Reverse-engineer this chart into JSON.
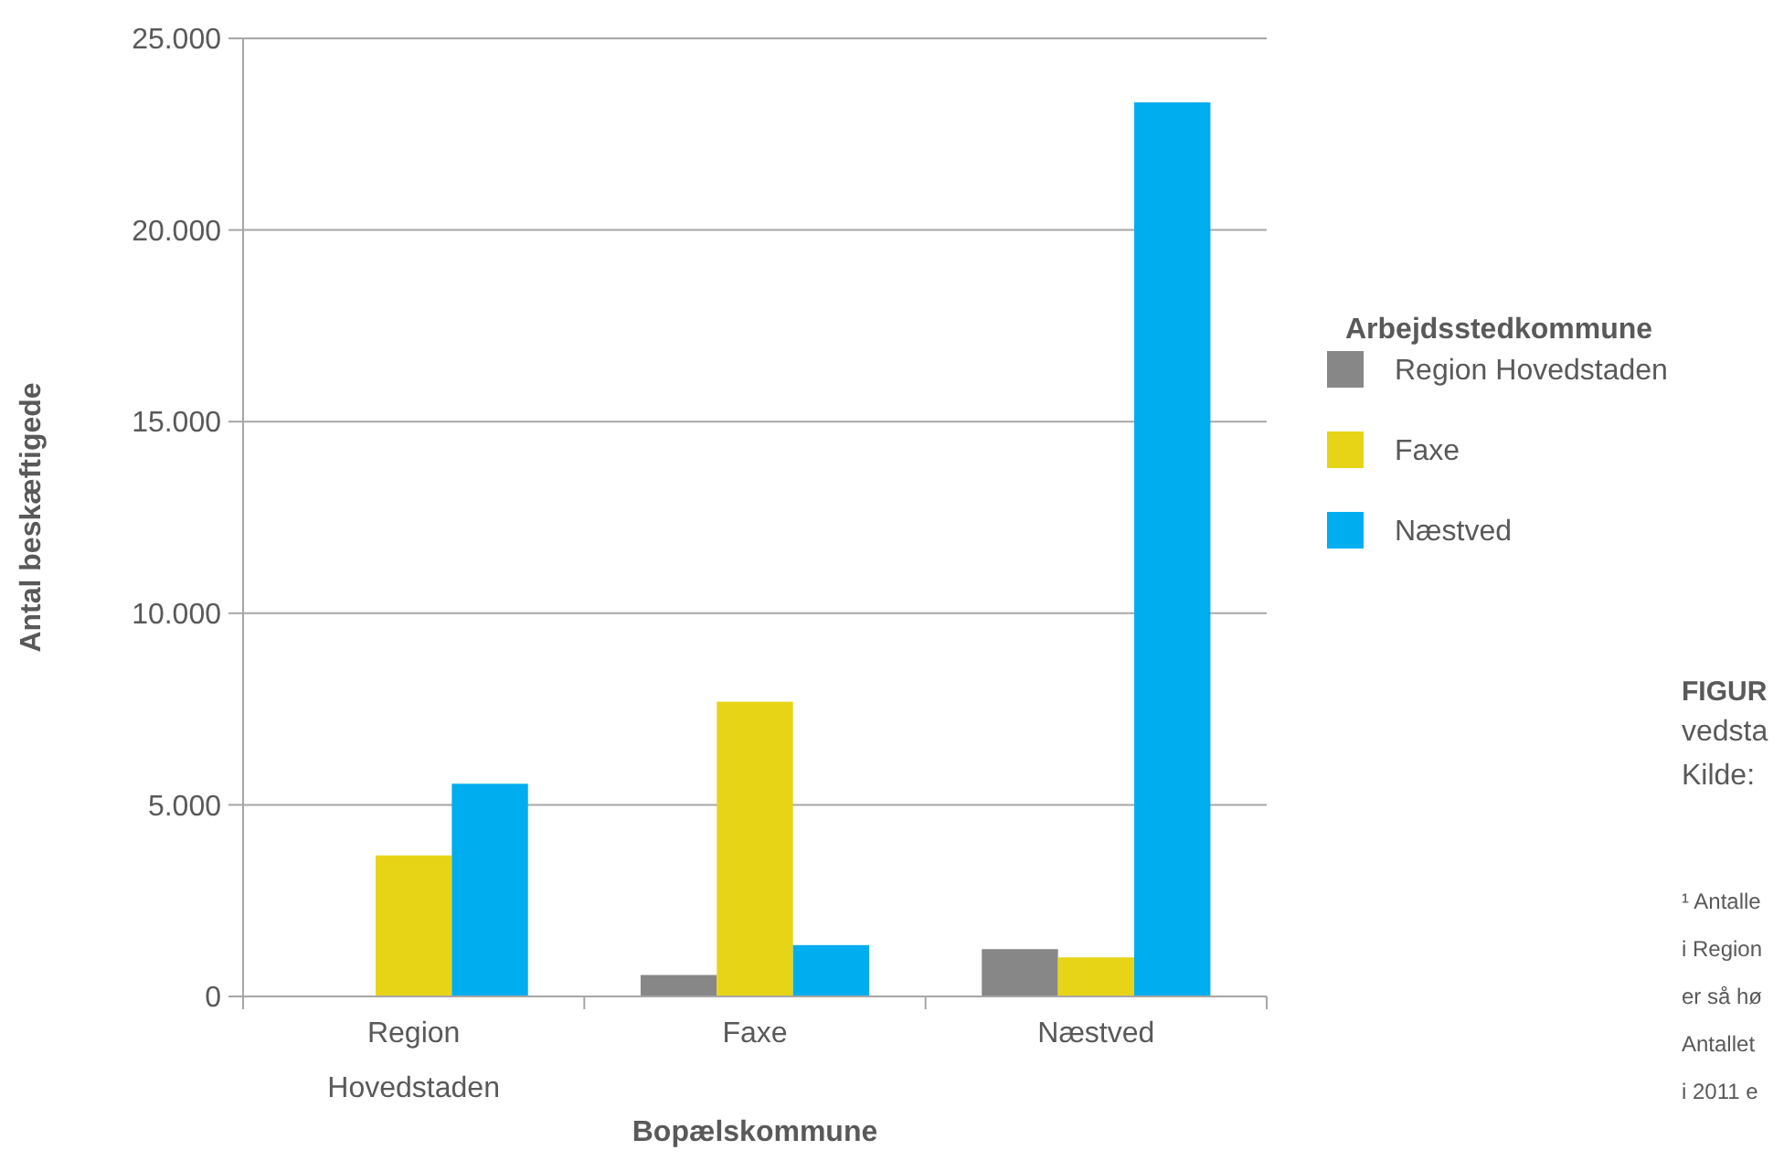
{
  "chart_data": {
    "type": "bar",
    "xlabel": "Bopælskommune",
    "ylabel": "Antal beskæftigede",
    "legend_title": "Arbejdsstedkommune",
    "categories": [
      "Region Hovedstaden",
      "Faxe",
      "Næstved"
    ],
    "series": [
      {
        "name": "Region Hovedstaden",
        "color": "#878787",
        "values": [
          null,
          560,
          1235
        ]
      },
      {
        "name": "Faxe",
        "color": "#e8d417",
        "values": [
          3680,
          7690,
          1020
        ]
      },
      {
        "name": "Næstved",
        "color": "#00adef",
        "values": [
          5550,
          1340,
          23330
        ]
      }
    ],
    "ylim": [
      0,
      25000
    ],
    "yticks": [
      {
        "value": 0,
        "label": "0"
      },
      {
        "value": 5000,
        "label": "5.000"
      },
      {
        "value": 10000,
        "label": "10.000"
      },
      {
        "value": 15000,
        "label": "15.000"
      },
      {
        "value": 20000,
        "label": "20.000"
      },
      {
        "value": 25000,
        "label": "25.000"
      }
    ],
    "grid": "y",
    "legend": "right",
    "annotations": [
      "FIGUR",
      "vedsta",
      "Kilde:",
      "¹ Antalle",
      "i Region",
      "er så hø",
      "Antallet",
      "i 2011 e"
    ]
  }
}
